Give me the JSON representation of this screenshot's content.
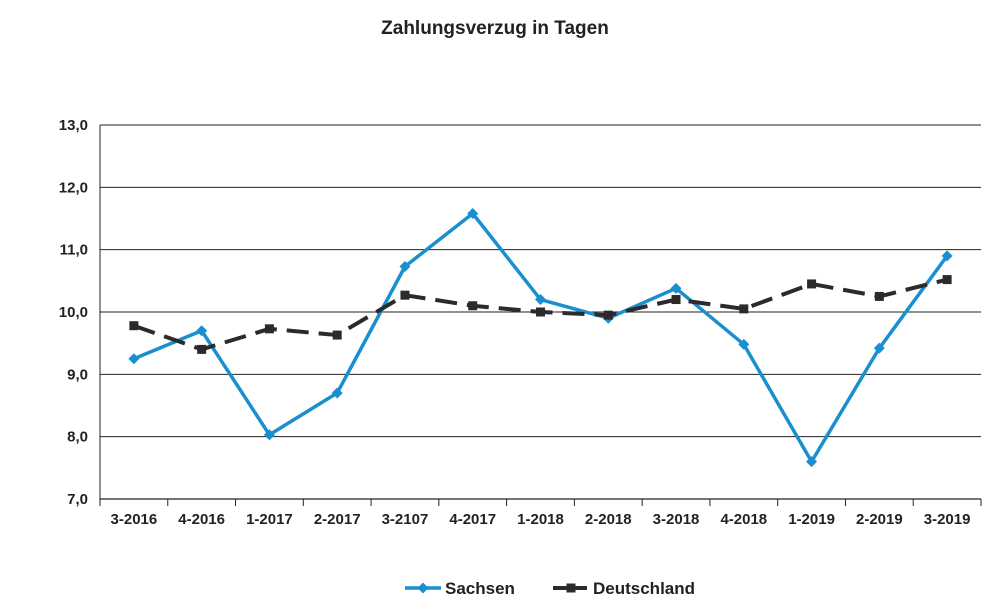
{
  "chart_data": {
    "type": "line",
    "title": "Zahlungsverzug in Tagen",
    "xlabel": "",
    "ylabel": "",
    "categories": [
      "3-2016",
      "4-2016",
      "1-2017",
      "2-2017",
      "3-2107",
      "4-2017",
      "1-2018",
      "2-2018",
      "3-2018",
      "4-2018",
      "1-2019",
      "2-2019",
      "3-2019"
    ],
    "ylim": [
      7.0,
      13.0
    ],
    "yticks": [
      "7,0",
      "8,0",
      "9,0",
      "10,0",
      "11,0",
      "12,0",
      "13,0"
    ],
    "grid": true,
    "legend_position": "bottom",
    "series": [
      {
        "name": "Sachsen",
        "color": "#1a8fd0",
        "style": "solid",
        "marker": "diamond",
        "values": [
          9.25,
          9.7,
          8.03,
          8.7,
          10.73,
          11.58,
          10.2,
          9.9,
          10.38,
          9.48,
          7.6,
          9.42,
          10.9
        ]
      },
      {
        "name": "Deutschland",
        "color": "#2b2b2b",
        "style": "dashed",
        "marker": "square",
        "values": [
          9.78,
          9.4,
          9.73,
          9.63,
          10.27,
          10.1,
          10.0,
          9.95,
          10.2,
          10.05,
          10.45,
          10.25,
          10.52
        ]
      }
    ]
  }
}
